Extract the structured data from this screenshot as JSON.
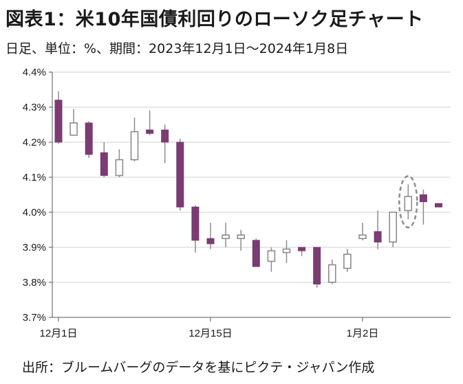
{
  "title": "図表1：米10年国債利回りのローソク足チャート",
  "subtitle": "日足、単位：%、期間：2023年12月1日～2024年1月8日",
  "source": "出所：ブルームバーグのデータを基にピクテ・ジャパン作成",
  "colors": {
    "down": "#7b3b73",
    "up_border": "#8c8c8c",
    "grid": "#d0d0d0",
    "highlight": "#8c8c8c"
  },
  "chart_data": {
    "type": "candlestick",
    "ylim": [
      3.7,
      4.4
    ],
    "yticks": [
      3.7,
      3.8,
      3.9,
      4.0,
      4.1,
      4.2,
      4.3,
      4.4
    ],
    "ytick_labels": [
      "3.7%",
      "3.8%",
      "3.9%",
      "4.0%",
      "4.1%",
      "4.2%",
      "4.3%",
      "4.4%"
    ],
    "x_ticks": [
      {
        "index": 0,
        "label": "12月1日"
      },
      {
        "index": 10,
        "label": "12月15日"
      },
      {
        "index": 20,
        "label": "1月2日"
      }
    ],
    "highlight_index": 23,
    "candles": [
      {
        "open": 4.32,
        "close": 4.2,
        "high": 4.345,
        "low": 4.195
      },
      {
        "open": 4.22,
        "close": 4.255,
        "high": 4.295,
        "low": 4.22
      },
      {
        "open": 4.255,
        "close": 4.165,
        "high": 4.26,
        "low": 4.155
      },
      {
        "open": 4.17,
        "close": 4.105,
        "high": 4.2,
        "low": 4.1
      },
      {
        "open": 4.105,
        "close": 4.15,
        "high": 4.18,
        "low": 4.1
      },
      {
        "open": 4.15,
        "close": 4.23,
        "high": 4.27,
        "low": 4.145
      },
      {
        "open": 4.235,
        "close": 4.225,
        "high": 4.29,
        "low": 4.22
      },
      {
        "open": 4.235,
        "close": 4.2,
        "high": 4.25,
        "low": 4.14
      },
      {
        "open": 4.2,
        "close": 4.015,
        "high": 4.21,
        "low": 4.005
      },
      {
        "open": 4.015,
        "close": 3.92,
        "high": 4.02,
        "low": 3.885
      },
      {
        "open": 3.925,
        "close": 3.91,
        "high": 3.97,
        "low": 3.895
      },
      {
        "open": 3.925,
        "close": 3.935,
        "high": 3.97,
        "low": 3.9
      },
      {
        "open": 3.925,
        "close": 3.935,
        "high": 3.95,
        "low": 3.89
      },
      {
        "open": 3.92,
        "close": 3.845,
        "high": 3.925,
        "low": 3.845
      },
      {
        "open": 3.86,
        "close": 3.89,
        "high": 3.9,
        "low": 3.83
      },
      {
        "open": 3.885,
        "close": 3.895,
        "high": 3.92,
        "low": 3.855
      },
      {
        "open": 3.9,
        "close": 3.89,
        "high": 3.9,
        "low": 3.875
      },
      {
        "open": 3.9,
        "close": 3.795,
        "high": 3.9,
        "low": 3.785
      },
      {
        "open": 3.8,
        "close": 3.85,
        "high": 3.865,
        "low": 3.795
      },
      {
        "open": 3.84,
        "close": 3.88,
        "high": 3.895,
        "low": 3.83
      },
      {
        "open": 3.925,
        "close": 3.935,
        "high": 3.97,
        "low": 3.92
      },
      {
        "open": 3.945,
        "close": 3.915,
        "high": 4.005,
        "low": 3.895
      },
      {
        "open": 3.915,
        "close": 4.0,
        "high": 4.0,
        "low": 3.9
      },
      {
        "open": 4.005,
        "close": 4.045,
        "high": 4.08,
        "low": 3.98
      },
      {
        "open": 4.05,
        "close": 4.03,
        "high": 4.065,
        "low": 3.965
      },
      {
        "open": 4.025,
        "close": 4.015,
        "high": 4.025,
        "low": 4.015
      }
    ]
  }
}
